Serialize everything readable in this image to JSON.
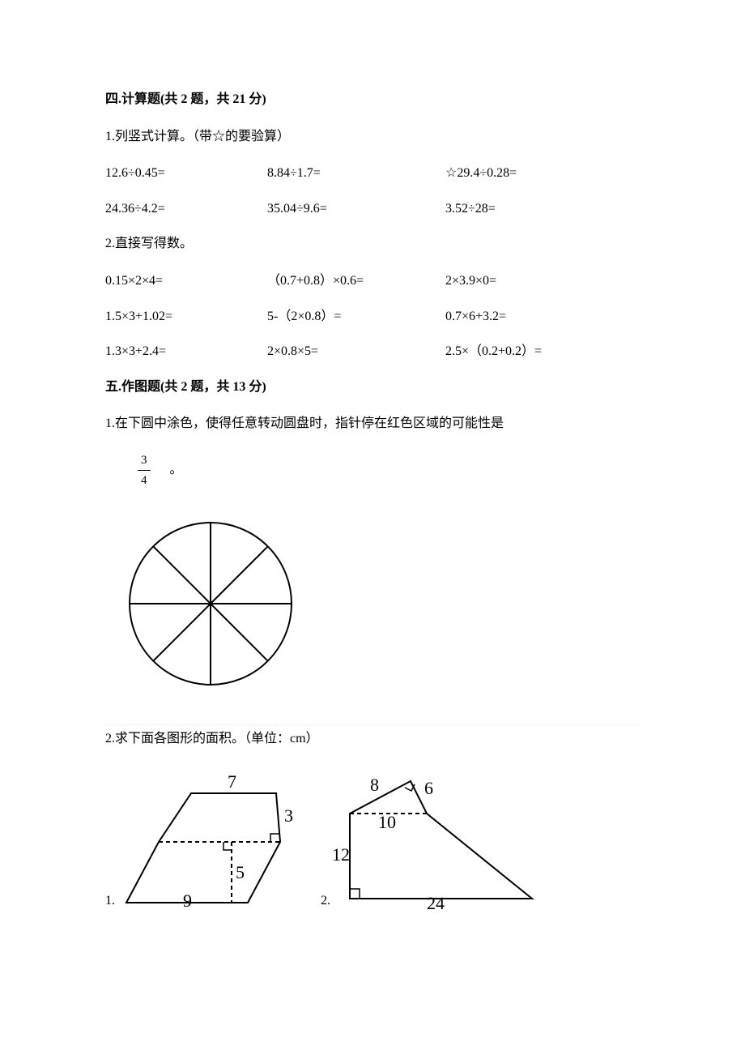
{
  "section4": {
    "header": "四.计算题(共 2 题，共 21 分)",
    "q1": {
      "prompt": "1.列竖式计算。（带☆的要验算）",
      "rows": [
        {
          "a": "12.6÷0.45=",
          "b": "8.84÷1.7=",
          "c": "☆29.4÷0.28="
        },
        {
          "a": "24.36÷4.2=",
          "b": "35.04÷9.6=",
          "c": "3.52÷28="
        }
      ]
    },
    "q2": {
      "prompt": "2.直接写得数。",
      "rows": [
        {
          "a": "0.15×2×4=",
          "b": "（0.7+0.8）×0.6=",
          "c": "2×3.9×0="
        },
        {
          "a": "1.5×3+1.02=",
          "b": "5-（2×0.8）=",
          "c": "0.7×6+3.2="
        },
        {
          "a": "1.3×3+2.4=",
          "b": "2×0.8×5=",
          "c": "2.5×（0.2+0.2）="
        }
      ]
    }
  },
  "section5": {
    "header": "五.作图题(共 2 题，共 13 分)",
    "q1": {
      "prompt": "1.在下圆中涂色，使得任意转动圆盘时，指针停在红色区域的可能性是",
      "fraction": {
        "num": "3",
        "den": "4"
      },
      "period": "。",
      "circle": {
        "radius": 100,
        "sectors": 8,
        "stroke": "#000000",
        "stroke_width": 2,
        "fill": "#ffffff"
      }
    },
    "q2": {
      "prompt": "2.求下面各图形的面积。（单位：cm）",
      "figure1": {
        "label": "1.",
        "top_label": "7",
        "right_label": "3",
        "mid_label": "5",
        "bottom_label": "9",
        "stroke": "#000000",
        "font_size": 22
      },
      "figure2": {
        "label": "2.",
        "top_left_label": "8",
        "top_right_label": "6",
        "inner_label": "10",
        "left_label": "12",
        "bottom_label": "24",
        "stroke": "#000000",
        "font_size": 22
      }
    }
  }
}
